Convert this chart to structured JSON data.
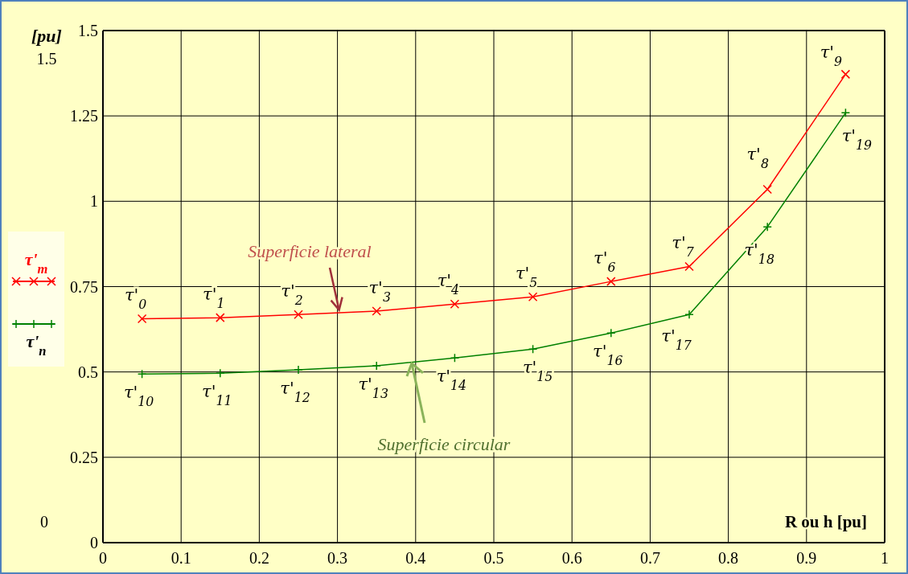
{
  "chart_data": {
    "type": "line",
    "ylabel": "[pu]",
    "xlabel": "R ou h [pu]",
    "x": [
      0.05,
      0.15,
      0.25,
      0.35,
      0.45,
      0.55,
      0.65,
      0.75,
      0.85,
      0.95
    ],
    "series": [
      {
        "name": "τ'$_{m}$",
        "color": "#ff0000",
        "marker": "cross",
        "values": [
          0.656,
          0.659,
          0.668,
          0.678,
          0.699,
          0.72,
          0.765,
          0.809,
          1.035,
          1.372
        ]
      },
      {
        "name": "τ'$_{n}$",
        "color": "#008000",
        "marker": "cross",
        "values": [
          0.494,
          0.496,
          0.506,
          0.518,
          0.541,
          0.567,
          0.614,
          0.668,
          0.925,
          1.259
        ]
      }
    ],
    "xlim": [
      0,
      1
    ],
    "xticks": [
      0,
      0.1,
      0.2,
      0.3,
      0.4,
      0.5,
      0.6,
      0.7,
      0.8,
      0.9,
      1
    ],
    "ylim": [
      0,
      1.5
    ],
    "yticks": [
      0,
      0.25,
      0.5,
      0.75,
      1,
      1.25,
      1.5
    ],
    "grid": true,
    "legend": "left",
    "annotations": [
      {
        "text": "τ'$_{0}$",
        "x": 0.05,
        "y": 0.656
      },
      {
        "text": "τ'$_{1}$",
        "x": 0.15,
        "y": 0.659
      },
      {
        "text": "τ'$_{2}$",
        "x": 0.25,
        "y": 0.668
      },
      {
        "text": "τ'$_{3}$",
        "x": 0.35,
        "y": 0.678
      },
      {
        "text": "τ'$_{4}$",
        "x": 0.45,
        "y": 0.699
      },
      {
        "text": "τ'$_{5}$",
        "x": 0.55,
        "y": 0.72
      },
      {
        "text": "τ'$_{6}$",
        "x": 0.65,
        "y": 0.765
      },
      {
        "text": "τ'$_{7}$",
        "x": 0.75,
        "y": 0.809
      },
      {
        "text": "τ'$_{8}$",
        "x": 0.85,
        "y": 1.035
      },
      {
        "text": "τ'$_{9}$",
        "x": 0.95,
        "y": 1.372
      },
      {
        "text": "τ'$_{10}$",
        "x": 0.05,
        "y": 0.494
      },
      {
        "text": "τ'$_{11}$",
        "x": 0.15,
        "y": 0.496
      },
      {
        "text": "τ'$_{12}$",
        "x": 0.25,
        "y": 0.506
      },
      {
        "text": "τ'$_{13}$",
        "x": 0.35,
        "y": 0.518
      },
      {
        "text": "τ'$_{14}$",
        "x": 0.45,
        "y": 0.541
      },
      {
        "text": "τ'$_{15}$",
        "x": 0.55,
        "y": 0.567
      },
      {
        "text": "τ'$_{16}$",
        "x": 0.65,
        "y": 0.614
      },
      {
        "text": "τ'$_{17}$",
        "x": 0.75,
        "y": 0.668
      },
      {
        "text": "τ'$_{18}$",
        "x": 0.85,
        "y": 0.925
      },
      {
        "text": "τ'$_{19}$",
        "x": 0.95,
        "y": 1.259
      },
      {
        "text": "Superficie lateral",
        "x": 0.3,
        "y": 0.672
      },
      {
        "text": "Superficie circular",
        "x": 0.395,
        "y": 0.53
      },
      "1.5",
      "0"
    ]
  }
}
